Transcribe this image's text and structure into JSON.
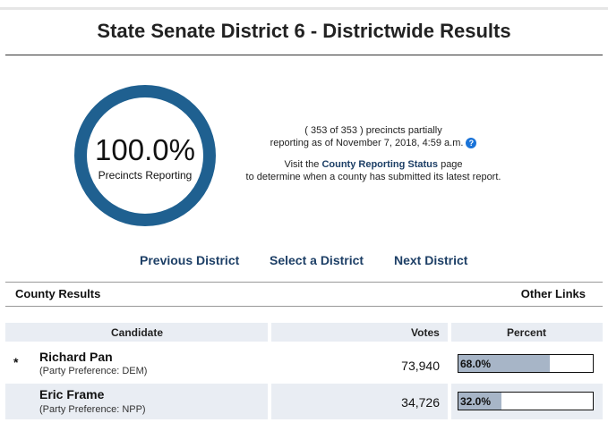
{
  "page": {
    "title": "State Senate District 6 - Districtwide Results"
  },
  "reporting": {
    "percent_text": "100.0%",
    "label": "Precincts Reporting",
    "percent_value": 1.0,
    "ring_color": "#1f6090",
    "precincts_text": "( 353 of 353 ) precincts partially",
    "asof_text": "reporting as of November 7, 2018, 4:59 a.m.",
    "help_icon": "question-circle-icon",
    "visit_prefix": "Visit the ",
    "county_status_link": "County Reporting Status",
    "visit_suffix": " page",
    "determine_text": "to determine when a county has submitted its latest report."
  },
  "nav": {
    "previous": "Previous District",
    "select": "Select a District",
    "next": "Next District"
  },
  "sections": {
    "county_results": "County Results",
    "other_links": "Other Links"
  },
  "table": {
    "headers": {
      "candidate": "Candidate",
      "votes": "Votes",
      "percent": "Percent"
    },
    "winner_marker": "*",
    "rows": [
      {
        "name": "Richard Pan",
        "party": "(Party Preference: DEM)",
        "votes": "73,940",
        "percent_text": "68.0%",
        "percent_value": 0.68
      },
      {
        "name": "Eric Frame",
        "party": "(Party Preference: NPP)",
        "votes": "34,726",
        "percent_text": "32.0%",
        "percent_value": 0.32
      }
    ]
  },
  "colors": {
    "link": "#1d3f66",
    "header_band": "#e9edf3",
    "bar_fill": "#a7b5c7"
  }
}
